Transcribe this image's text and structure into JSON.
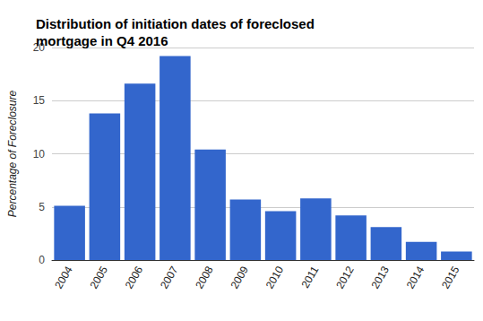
{
  "chart_data": {
    "type": "bar",
    "title": "Distribution of initiation dates of foreclosed mortgage in Q4 2016",
    "y_label": "Percentage of Foreclosure",
    "categories": [
      "2004",
      "2005",
      "2006",
      "2007",
      "2008",
      "2009",
      "2010",
      "2011",
      "2012",
      "2013",
      "2014",
      "2015"
    ],
    "values": [
      5.1,
      13.8,
      16.6,
      19.2,
      10.4,
      5.7,
      4.6,
      5.8,
      4.2,
      3.1,
      1.7,
      0.8
    ],
    "color": "#3366cc",
    "ylim": [
      0,
      20
    ],
    "yticks": [
      0,
      5,
      10,
      15,
      20
    ],
    "grid": true
  }
}
